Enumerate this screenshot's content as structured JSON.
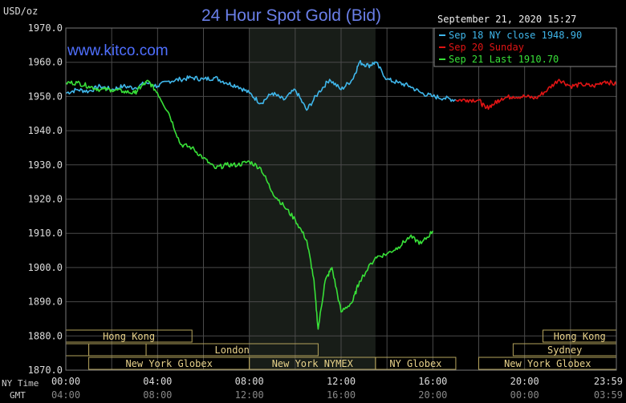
{
  "chart_data": {
    "type": "line",
    "title": "24 Hour Spot Gold (Bid)",
    "watermark": "www.kitco.com",
    "ylabel": "USD/oz",
    "timestamp": "September 21, 2020 15:27",
    "ylim": [
      1870,
      1970
    ],
    "xlim": [
      0,
      24
    ],
    "y_ticks": [
      "1970.0",
      "1960.0",
      "1950.0",
      "1940.0",
      "1930.0",
      "1920.0",
      "1910.0",
      "1900.0",
      "1890.0",
      "1880.0",
      "1870.0"
    ],
    "x_axis_label": "NY Time",
    "x_ticks": [
      "00:00",
      "04:00",
      "08:00",
      "12:00",
      "16:00",
      "20:00",
      "23:59"
    ],
    "gmt_axis_label": "GMT",
    "gmt_ticks": [
      "04:00",
      "08:00",
      "12:00",
      "16:00",
      "20:00",
      "00:00",
      "03:59"
    ],
    "x_tick_hours": [
      0,
      4,
      8,
      12,
      16,
      20,
      24
    ],
    "grid": true,
    "legend_position": "top-right",
    "colors": {
      "background": "#000000",
      "plot_background": "#000000",
      "shaded_session": "#181d18",
      "grid": "#4a4a4a",
      "title": "#6a7fe8",
      "watermark": "#4f6fff",
      "session_border": "#b5a35c",
      "session_text": "#e8d28a"
    },
    "shaded_range": [
      8,
      13.5
    ],
    "series": [
      {
        "name": "Sep 18 NY close 1948.90",
        "color": "#3fb6ea",
        "x": [
          0,
          0.5,
          1,
          1.5,
          2,
          2.5,
          3,
          3.5,
          4,
          4.5,
          5,
          5.5,
          6,
          6.5,
          7,
          7.5,
          8,
          8.5,
          9,
          9.5,
          10,
          10.5,
          11,
          11.5,
          12,
          12.5,
          12.8,
          13.2,
          13.5,
          14,
          14.5,
          15,
          15.5,
          16,
          16.5,
          17
        ],
        "values": [
          1951,
          1952,
          1951.5,
          1953,
          1952,
          1953,
          1952.5,
          1954,
          1953,
          1954.5,
          1955,
          1955.5,
          1955,
          1955.5,
          1954,
          1953,
          1951,
          1948,
          1951,
          1949,
          1952,
          1946,
          1951,
          1955,
          1952,
          1955,
          1960,
          1959,
          1960,
          1955,
          1954,
          1953,
          1951,
          1950,
          1949.5,
          1949
        ]
      },
      {
        "name": "Sep 20 Sunday",
        "color": "#e01414",
        "x": [
          17,
          17.5,
          18,
          18.3,
          18.7,
          19,
          19.5,
          20,
          20.5,
          21,
          21.5,
          22,
          22.5,
          23,
          23.5,
          24
        ],
        "values": [
          1949,
          1949,
          1949,
          1946.5,
          1948,
          1949.5,
          1950,
          1950,
          1949.5,
          1952,
          1955,
          1953,
          1953.5,
          1953,
          1954.5,
          1953.5
        ]
      },
      {
        "name": "Sep 21 Last 1910.70",
        "color": "#38e038",
        "x": [
          0,
          0.5,
          1,
          1.5,
          2,
          2.5,
          3,
          3.3,
          3.6,
          4,
          4.5,
          5,
          5.5,
          6,
          6.5,
          7,
          7.5,
          8,
          8.5,
          9,
          9.5,
          10,
          10.5,
          10.8,
          11,
          11.3,
          11.6,
          12,
          12.5,
          12.8,
          13.5,
          14,
          14.5,
          15,
          15.5,
          16
        ],
        "values": [
          1954,
          1954,
          1953,
          1952,
          1952,
          1951.5,
          1951,
          1953,
          1954.5,
          1951,
          1945,
          1936,
          1935,
          1932,
          1929,
          1930,
          1930,
          1931,
          1929,
          1922,
          1918,
          1914,
          1908,
          1897,
          1882,
          1896,
          1900,
          1887,
          1890,
          1896,
          1903,
          1904,
          1906,
          1909,
          1907,
          1910.7
        ]
      }
    ],
    "sessions": [
      {
        "label": "Hong Kong",
        "start": 0,
        "end": 5.5,
        "row": 0
      },
      {
        "label": "",
        "start": 0,
        "end": 1.0,
        "row": 1
      },
      {
        "label": "",
        "start": 1.0,
        "end": 3.5,
        "row": 1
      },
      {
        "label": "London",
        "start": 3.5,
        "end": 11.0,
        "row": 1
      },
      {
        "label": "New York Globex",
        "start": 1.0,
        "end": 8.0,
        "row": 2
      },
      {
        "label": "New York NYMEX",
        "start": 8.0,
        "end": 13.5,
        "row": 2
      },
      {
        "label": "NY Globex",
        "start": 13.5,
        "end": 17.0,
        "row": 2
      },
      {
        "label": "Hong Kong",
        "start": 20.8,
        "end": 24,
        "row": 0
      },
      {
        "label": "Sydney",
        "start": 19.5,
        "end": 24,
        "row": 1
      },
      {
        "label": "New York Globex",
        "start": 18.0,
        "end": 24,
        "row": 2
      }
    ]
  }
}
